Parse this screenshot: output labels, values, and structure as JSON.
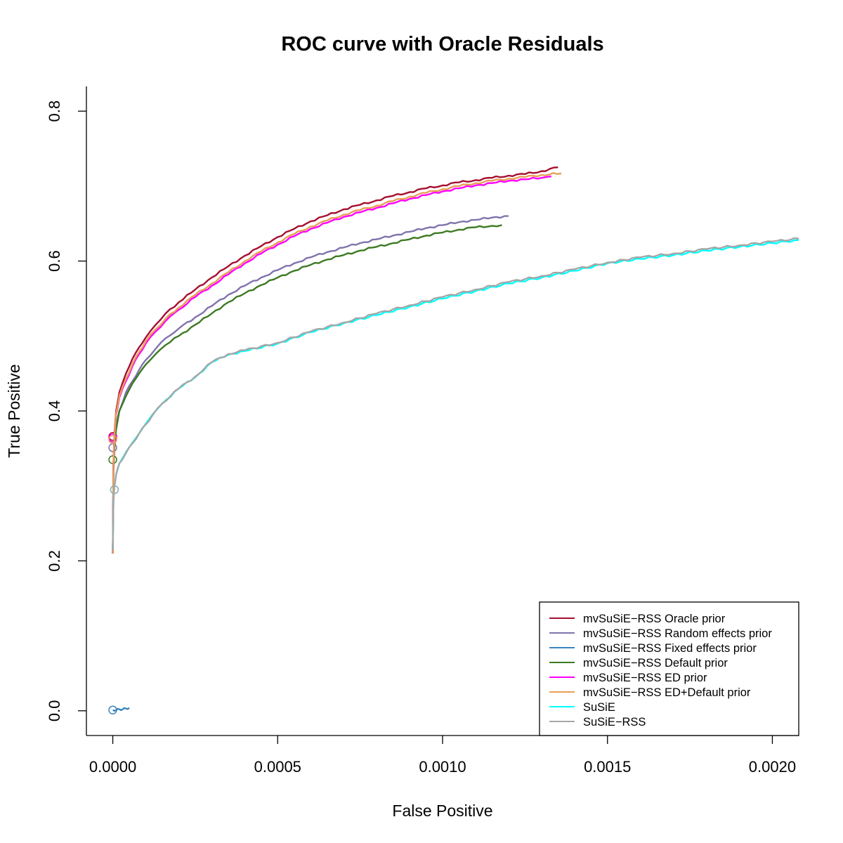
{
  "chart_data": {
    "type": "line",
    "title": "ROC curve with Oracle Residuals",
    "xlabel": "False Positive",
    "ylabel": "True Positive",
    "xlim": [
      -8e-05,
      0.00208
    ],
    "ylim": [
      -0.033,
      0.833
    ],
    "x_ticks": [
      0,
      0.0005,
      0.001,
      0.0015,
      0.002
    ],
    "x_tick_labels": [
      "0.0000",
      "0.0005",
      "0.0010",
      "0.0015",
      "0.0020"
    ],
    "y_ticks": [
      0,
      0.2,
      0.4,
      0.6,
      0.8
    ],
    "y_tick_labels": [
      "0.0",
      "0.2",
      "0.4",
      "0.6",
      "0.8"
    ],
    "grid": false,
    "legend_position": "bottom-right",
    "series": [
      {
        "name": "mvSuSiE−RSS Oracle prior",
        "color": "#A50F30",
        "start": [
          0,
          0.366
        ],
        "x": [
          0,
          2e-06,
          5e-06,
          1e-05,
          2e-05,
          4e-05,
          6e-05,
          8e-05,
          0.0001,
          0.00013,
          0.00016,
          0.0002,
          0.00025,
          0.0003,
          0.00035,
          0.0004,
          0.00045,
          0.0005,
          0.00055,
          0.0006,
          0.00065,
          0.0007,
          0.00075,
          0.0008,
          0.00085,
          0.0009,
          0.00095,
          0.001,
          0.00105,
          0.0011,
          0.00115,
          0.0012,
          0.00125,
          0.0013,
          0.00135
        ],
        "y": [
          0.21,
          0.33,
          0.37,
          0.4,
          0.425,
          0.45,
          0.47,
          0.485,
          0.498,
          0.515,
          0.53,
          0.545,
          0.562,
          0.578,
          0.593,
          0.607,
          0.62,
          0.632,
          0.643,
          0.653,
          0.661,
          0.669,
          0.675,
          0.681,
          0.687,
          0.692,
          0.697,
          0.701,
          0.705,
          0.708,
          0.711,
          0.714,
          0.716,
          0.72,
          0.725
        ]
      },
      {
        "name": "mvSuSiE−RSS Random effects prior",
        "color": "#8073AC",
        "start": [
          0,
          0.351
        ],
        "x": [
          0,
          2e-06,
          5e-06,
          1e-05,
          2e-05,
          4e-05,
          6e-05,
          8e-05,
          0.0001,
          0.00013,
          0.00016,
          0.0002,
          0.00025,
          0.0003,
          0.00035,
          0.0004,
          0.00045,
          0.0005,
          0.00055,
          0.0006,
          0.00065,
          0.0007,
          0.00075,
          0.0008,
          0.00085,
          0.0009,
          0.00095,
          0.001,
          0.00105,
          0.0011,
          0.00115,
          0.0012
        ],
        "y": [
          0.21,
          0.33,
          0.36,
          0.38,
          0.4,
          0.425,
          0.44,
          0.455,
          0.468,
          0.483,
          0.497,
          0.51,
          0.525,
          0.54,
          0.555,
          0.567,
          0.578,
          0.588,
          0.597,
          0.605,
          0.612,
          0.618,
          0.624,
          0.629,
          0.634,
          0.639,
          0.644,
          0.648,
          0.652,
          0.655,
          0.658,
          0.66
        ]
      },
      {
        "name": "mvSuSiE−RSS Fixed effects prior",
        "color": "#3A86BE",
        "start": [
          0,
          0.001
        ],
        "x": [
          0,
          1e-05,
          2e-05,
          3e-05,
          4e-05,
          5e-05
        ],
        "y": [
          0.001,
          0.001,
          0.002,
          0.002,
          0.003,
          0.004
        ]
      },
      {
        "name": "mvSuSiE−RSS Default prior",
        "color": "#3C7A22",
        "start": [
          0,
          0.335
        ],
        "x": [
          0,
          2e-06,
          5e-06,
          1e-05,
          2e-05,
          4e-05,
          6e-05,
          8e-05,
          0.0001,
          0.00013,
          0.00016,
          0.0002,
          0.00025,
          0.0003,
          0.00035,
          0.0004,
          0.00045,
          0.0005,
          0.00055,
          0.0006,
          0.00065,
          0.0007,
          0.00075,
          0.0008,
          0.00085,
          0.0009,
          0.00095,
          0.001,
          0.00105,
          0.0011,
          0.00115,
          0.00118
        ],
        "y": [
          0.21,
          0.32,
          0.35,
          0.375,
          0.4,
          0.42,
          0.437,
          0.45,
          0.462,
          0.476,
          0.488,
          0.5,
          0.515,
          0.53,
          0.545,
          0.557,
          0.568,
          0.578,
          0.587,
          0.595,
          0.602,
          0.608,
          0.614,
          0.619,
          0.624,
          0.629,
          0.634,
          0.638,
          0.642,
          0.645,
          0.647,
          0.648
        ]
      },
      {
        "name": "mvSuSiE−RSS ED prior",
        "color": "#FF00FF",
        "start": [
          0,
          0.364
        ],
        "x": [
          0,
          2e-06,
          5e-06,
          1e-05,
          2e-05,
          4e-05,
          6e-05,
          8e-05,
          0.0001,
          0.00013,
          0.00016,
          0.0002,
          0.00025,
          0.0003,
          0.00035,
          0.0004,
          0.00045,
          0.0005,
          0.00055,
          0.0006,
          0.00065,
          0.0007,
          0.00075,
          0.0008,
          0.00085,
          0.0009,
          0.00095,
          0.001,
          0.00105,
          0.0011,
          0.00115,
          0.0012,
          0.00125,
          0.0013,
          0.00133
        ],
        "y": [
          0.21,
          0.33,
          0.365,
          0.395,
          0.418,
          0.44,
          0.46,
          0.476,
          0.49,
          0.506,
          0.52,
          0.535,
          0.552,
          0.567,
          0.582,
          0.597,
          0.61,
          0.622,
          0.633,
          0.643,
          0.651,
          0.659,
          0.665,
          0.671,
          0.677,
          0.683,
          0.688,
          0.693,
          0.697,
          0.701,
          0.704,
          0.707,
          0.709,
          0.711,
          0.713
        ]
      },
      {
        "name": "mvSuSiE−RSS ED+Default prior",
        "color": "#E6A056",
        "start": [
          0,
          0.362
        ],
        "x": [
          0,
          2e-06,
          5e-06,
          1e-05,
          2e-05,
          4e-05,
          6e-05,
          8e-05,
          0.0001,
          0.00013,
          0.00016,
          0.0002,
          0.00025,
          0.0003,
          0.00035,
          0.0004,
          0.00045,
          0.0005,
          0.00055,
          0.0006,
          0.00065,
          0.0007,
          0.00075,
          0.0008,
          0.00085,
          0.0009,
          0.00095,
          0.001,
          0.00105,
          0.0011,
          0.00115,
          0.0012,
          0.00125,
          0.0013,
          0.00136
        ],
        "y": [
          0.21,
          0.33,
          0.365,
          0.397,
          0.42,
          0.443,
          0.463,
          0.479,
          0.493,
          0.509,
          0.523,
          0.538,
          0.555,
          0.57,
          0.585,
          0.6,
          0.613,
          0.625,
          0.636,
          0.646,
          0.654,
          0.662,
          0.668,
          0.674,
          0.68,
          0.686,
          0.691,
          0.696,
          0.7,
          0.704,
          0.707,
          0.71,
          0.712,
          0.715,
          0.717
        ]
      },
      {
        "name": "SuSiE",
        "color": "#00FFFF",
        "start": [
          5e-06,
          0.295
        ],
        "x": [
          0,
          2e-06,
          5e-06,
          1e-05,
          2e-05,
          4e-05,
          6e-05,
          8e-05,
          0.0001,
          0.00012,
          0.00015,
          0.0002,
          0.00025,
          0.0003,
          0.00035,
          0.0004,
          0.0005,
          0.0006,
          0.0007,
          0.0008,
          0.0009,
          0.001,
          0.0011,
          0.0012,
          0.0013,
          0.0014,
          0.0015,
          0.0016,
          0.0017,
          0.0018,
          0.0019,
          0.002,
          0.00208
        ],
        "y": [
          0.215,
          0.28,
          0.3,
          0.315,
          0.33,
          0.345,
          0.358,
          0.37,
          0.383,
          0.395,
          0.41,
          0.43,
          0.445,
          0.465,
          0.475,
          0.48,
          0.49,
          0.505,
          0.517,
          0.528,
          0.539,
          0.55,
          0.56,
          0.57,
          0.578,
          0.587,
          0.597,
          0.603,
          0.608,
          0.614,
          0.619,
          0.624,
          0.628
        ]
      },
      {
        "name": "SuSiE−RSS",
        "color": "#A6A6A6",
        "start": [
          5e-06,
          0.295
        ],
        "x": [
          0,
          2e-06,
          5e-06,
          1e-05,
          2e-05,
          4e-05,
          6e-05,
          8e-05,
          0.0001,
          0.00012,
          0.00015,
          0.0002,
          0.00025,
          0.0003,
          0.00035,
          0.0004,
          0.0005,
          0.0006,
          0.0007,
          0.0008,
          0.0009,
          0.001,
          0.0011,
          0.0012,
          0.0013,
          0.0014,
          0.0015,
          0.0016,
          0.0017,
          0.0018,
          0.0019,
          0.002,
          0.00208
        ],
        "y": [
          0.215,
          0.28,
          0.3,
          0.315,
          0.33,
          0.344,
          0.357,
          0.37,
          0.382,
          0.394,
          0.41,
          0.43,
          0.446,
          0.465,
          0.476,
          0.481,
          0.491,
          0.506,
          0.518,
          0.53,
          0.541,
          0.552,
          0.562,
          0.572,
          0.58,
          0.589,
          0.598,
          0.605,
          0.61,
          0.616,
          0.621,
          0.626,
          0.63
        ]
      }
    ]
  }
}
